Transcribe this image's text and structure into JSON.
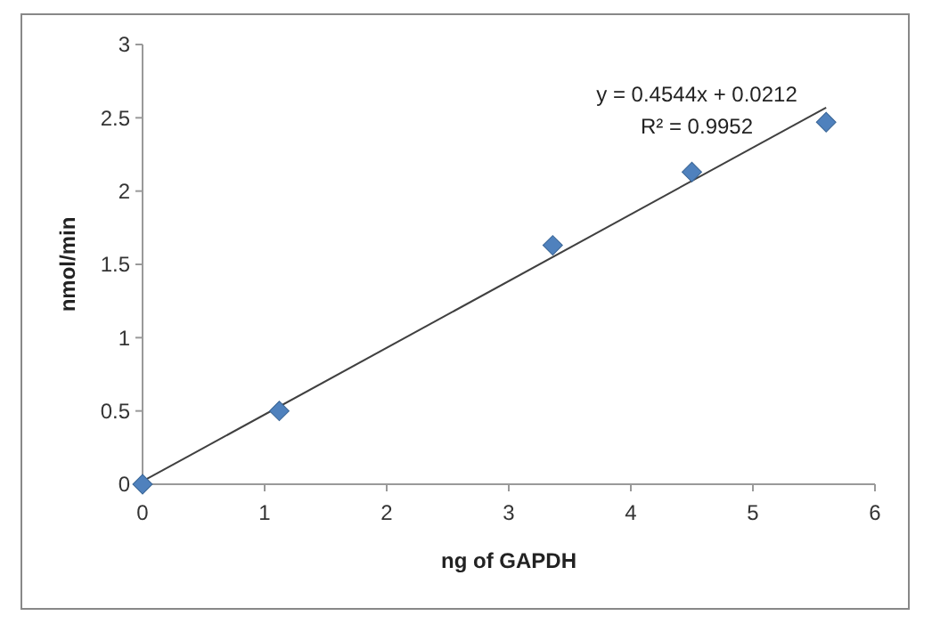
{
  "chart_data": {
    "type": "scatter",
    "xlabel": "ng of GAPDH",
    "ylabel": "nmol/min",
    "series": [
      {
        "color": "#4f81bd",
        "marker": "diamond",
        "x": [
          0,
          1.12,
          3.36,
          4.5,
          5.6
        ],
        "values": [
          0,
          0.5,
          1.63,
          2.13,
          2.47
        ]
      },
      {
        "type": "line",
        "color": "#404040",
        "x": [
          0,
          5.6
        ],
        "values": [
          0.02,
          2.57
        ]
      }
    ],
    "annotations": [
      "y = 0.4544x + 0.0212",
      "R² = 0.9952"
    ],
    "xlim": [
      0,
      6
    ],
    "xticks": [
      0,
      1,
      2,
      3,
      4,
      5,
      6
    ],
    "ylim": [
      0,
      3
    ],
    "yticks": [
      0,
      0.5,
      1,
      1.5,
      2,
      2.5,
      3
    ],
    "grid": false
  }
}
